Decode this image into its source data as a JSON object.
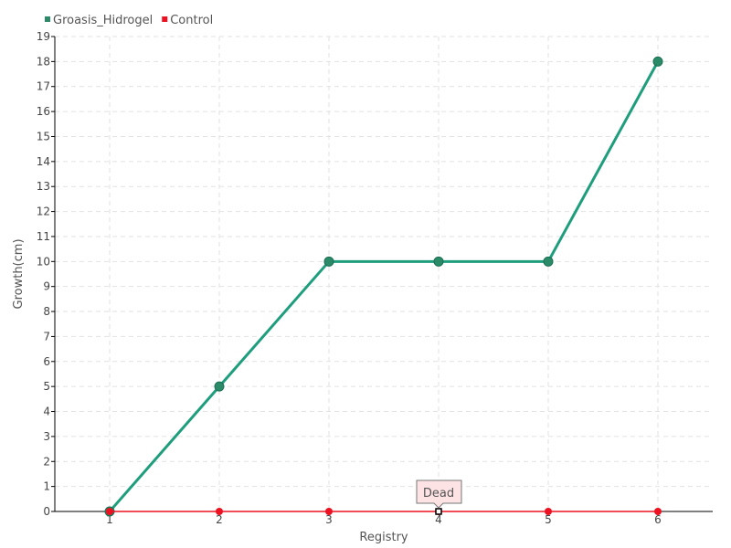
{
  "chart_data": {
    "type": "line",
    "xlabel": "Registry",
    "ylabel": "Growth(cm)",
    "x": [
      1,
      2,
      3,
      4,
      5,
      6
    ],
    "xlim": [
      0.5,
      6.5
    ],
    "ylim": [
      0,
      19
    ],
    "yticks": [
      0,
      1,
      2,
      3,
      4,
      5,
      6,
      7,
      8,
      9,
      10,
      11,
      12,
      13,
      14,
      15,
      16,
      17,
      18,
      19
    ],
    "grid": true,
    "legend_position": "top-left",
    "series": [
      {
        "name": "Groasis_Hidrogel",
        "values": [
          0,
          5,
          10,
          10,
          10,
          18
        ],
        "color": "#1e9e7c",
        "marker_color": "#2b8a68"
      },
      {
        "name": "Control",
        "values": [
          0,
          0,
          0,
          0,
          0,
          0
        ],
        "color": "#ee1122",
        "marker_color": "#ee1122"
      }
    ],
    "annotations": [
      {
        "series": "Control",
        "x": 4,
        "text": "Dead"
      }
    ]
  }
}
